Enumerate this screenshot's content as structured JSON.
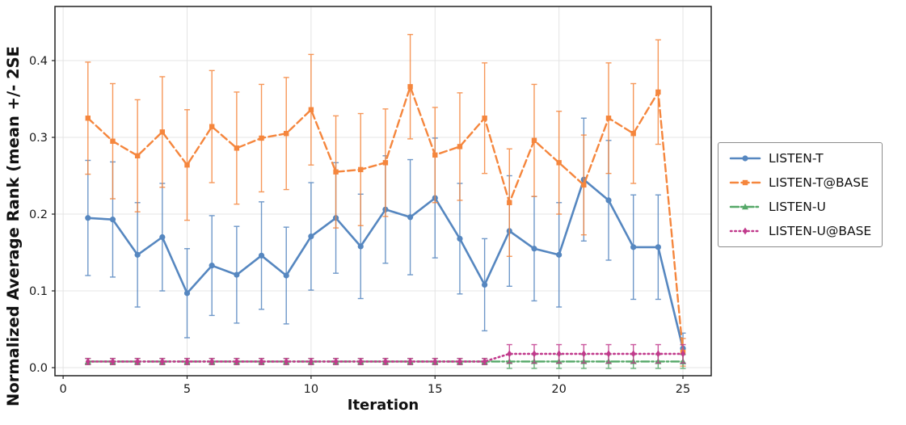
{
  "figure": {
    "background": "#ffffff"
  },
  "chart_data": {
    "type": "line",
    "title": "",
    "xlabel": "Iteration",
    "ylabel": "Normalized Average Rank (mean +/- 2SE",
    "grid": true,
    "grid_color": "#e4e4e4",
    "spine_color": "#222222",
    "tick_label_color": "#1a1a1a",
    "xlim": [
      -0.33,
      26.14
    ],
    "ylim": [
      -0.0105,
      0.4705
    ],
    "xticks": {
      "values": [
        0,
        5,
        10,
        15,
        20,
        25
      ],
      "labels": [
        "0",
        "5",
        "10",
        "15",
        "20",
        "25"
      ]
    },
    "yticks": {
      "values": [
        0.0,
        0.1,
        0.2,
        0.3,
        0.4
      ],
      "labels": [
        "0.0",
        "0.1",
        "0.2",
        "0.3",
        "0.4"
      ]
    },
    "legend": {
      "position": "right-outside",
      "border_color": "#8c8c8c"
    },
    "x": [
      1,
      2,
      3,
      4,
      5,
      6,
      7,
      8,
      9,
      10,
      11,
      12,
      13,
      14,
      15,
      16,
      17,
      18,
      19,
      20,
      21,
      22,
      23,
      24,
      25
    ],
    "series": [
      {
        "name": "LISTEN-T",
        "color": "#5687C0",
        "linestyle": "solid",
        "marker": "circle",
        "width": 2.6,
        "values": [
          0.195,
          0.193,
          0.147,
          0.17,
          0.097,
          0.133,
          0.121,
          0.146,
          0.12,
          0.171,
          0.195,
          0.158,
          0.206,
          0.196,
          0.221,
          0.168,
          0.108,
          0.178,
          0.155,
          0.147,
          0.245,
          0.218,
          0.157,
          0.157,
          0.025
        ],
        "err": [
          0.075,
          0.075,
          0.068,
          0.07,
          0.058,
          0.065,
          0.063,
          0.07,
          0.063,
          0.07,
          0.072,
          0.068,
          0.07,
          0.075,
          0.078,
          0.072,
          0.06,
          0.072,
          0.068,
          0.068,
          0.08,
          0.078,
          0.068,
          0.068,
          0.02
        ]
      },
      {
        "name": "LISTEN-T@BASE",
        "color": "#F5863D",
        "linestyle": "dashed",
        "marker": "square",
        "width": 2.4,
        "values": [
          0.325,
          0.295,
          0.276,
          0.307,
          0.264,
          0.314,
          0.286,
          0.299,
          0.305,
          0.336,
          0.255,
          0.258,
          0.267,
          0.366,
          0.277,
          0.288,
          0.325,
          0.215,
          0.296,
          0.267,
          0.238,
          0.325,
          0.305,
          0.359,
          0.02
        ],
        "err": [
          0.073,
          0.075,
          0.073,
          0.072,
          0.072,
          0.073,
          0.073,
          0.07,
          0.073,
          0.072,
          0.073,
          0.073,
          0.07,
          0.068,
          0.062,
          0.07,
          0.072,
          0.07,
          0.073,
          0.067,
          0.065,
          0.072,
          0.065,
          0.068,
          0.018
        ]
      },
      {
        "name": "LISTEN-U",
        "color": "#55A868",
        "linestyle": "dashdot",
        "marker": "triangle",
        "width": 2.4,
        "values": [
          0.008,
          0.008,
          0.008,
          0.008,
          0.008,
          0.008,
          0.008,
          0.008,
          0.008,
          0.008,
          0.008,
          0.008,
          0.008,
          0.008,
          0.008,
          0.008,
          0.008,
          0.008,
          0.008,
          0.008,
          0.008,
          0.008,
          0.008,
          0.008,
          0.008
        ],
        "err": [
          0.004,
          0.004,
          0.004,
          0.004,
          0.004,
          0.004,
          0.004,
          0.004,
          0.004,
          0.004,
          0.004,
          0.004,
          0.004,
          0.004,
          0.004,
          0.004,
          0.004,
          0.009,
          0.009,
          0.009,
          0.009,
          0.009,
          0.009,
          0.009,
          0.009
        ]
      },
      {
        "name": "LISTEN-U@BASE",
        "color": "#C13A8C",
        "linestyle": "dotted",
        "marker": "diamond",
        "width": 2.6,
        "values": [
          0.008,
          0.008,
          0.008,
          0.008,
          0.008,
          0.008,
          0.008,
          0.008,
          0.008,
          0.008,
          0.008,
          0.008,
          0.008,
          0.008,
          0.008,
          0.008,
          0.008,
          0.018,
          0.018,
          0.018,
          0.018,
          0.018,
          0.018,
          0.018,
          0.018
        ],
        "err": [
          0.004,
          0.004,
          0.004,
          0.004,
          0.004,
          0.004,
          0.004,
          0.004,
          0.004,
          0.004,
          0.004,
          0.004,
          0.004,
          0.004,
          0.004,
          0.004,
          0.004,
          0.012,
          0.012,
          0.012,
          0.012,
          0.012,
          0.012,
          0.012,
          0.012
        ]
      }
    ]
  }
}
